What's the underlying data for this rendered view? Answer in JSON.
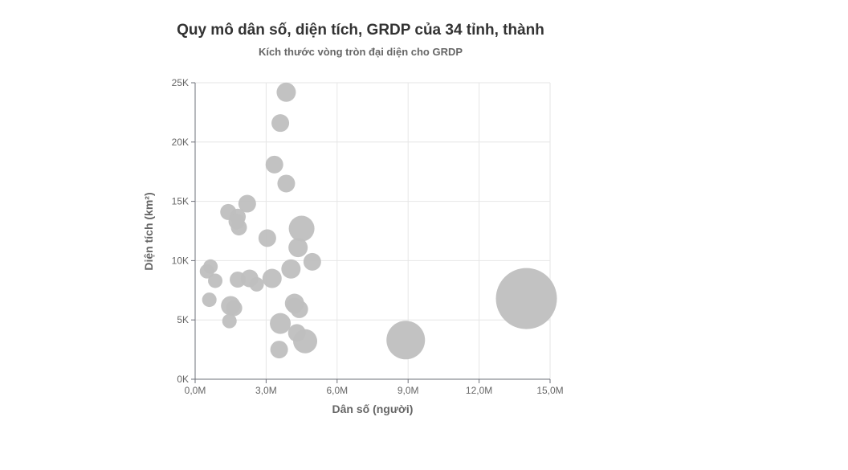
{
  "chart_data": {
    "type": "scatter",
    "title": "Quy mô dân số, diện tích, GRDP của 34 tỉnh, thành",
    "subtitle": "Kích thước vòng tròn đại diện cho GRDP",
    "xlabel": "Dân số (người)",
    "ylabel": "Diện tích (km²)",
    "xlim": [
      0,
      15000000
    ],
    "ylim": [
      0,
      25000
    ],
    "x_ticks": [
      0,
      3000000,
      6000000,
      9000000,
      12000000,
      15000000
    ],
    "x_tick_labels": [
      "0,0M",
      "3,0M",
      "6,0M",
      "9,0M",
      "12,0M",
      "15,0M"
    ],
    "y_ticks": [
      0,
      5000,
      10000,
      15000,
      20000,
      25000
    ],
    "y_tick_labels": [
      "0K",
      "5K",
      "10K",
      "15K",
      "20K",
      "25K"
    ],
    "grid": true,
    "bubble_color": "#bfbfbf",
    "series": [
      {
        "points": [
          {
            "x": 3850000,
            "y": 24200,
            "size": 12
          },
          {
            "x": 3600000,
            "y": 21600,
            "size": 11
          },
          {
            "x": 3350000,
            "y": 18100,
            "size": 11
          },
          {
            "x": 3850000,
            "y": 16500,
            "size": 11
          },
          {
            "x": 2200000,
            "y": 14800,
            "size": 11
          },
          {
            "x": 1400000,
            "y": 14100,
            "size": 10
          },
          {
            "x": 1800000,
            "y": 13700,
            "size": 10
          },
          {
            "x": 1750000,
            "y": 13300,
            "size": 10
          },
          {
            "x": 1850000,
            "y": 12800,
            "size": 10
          },
          {
            "x": 4500000,
            "y": 12700,
            "size": 16
          },
          {
            "x": 3050000,
            "y": 11900,
            "size": 11
          },
          {
            "x": 4350000,
            "y": 11100,
            "size": 12
          },
          {
            "x": 4950000,
            "y": 9900,
            "size": 11
          },
          {
            "x": 650000,
            "y": 9500,
            "size": 9
          },
          {
            "x": 500000,
            "y": 9100,
            "size": 9
          },
          {
            "x": 4050000,
            "y": 9300,
            "size": 12
          },
          {
            "x": 850000,
            "y": 8300,
            "size": 9
          },
          {
            "x": 1800000,
            "y": 8400,
            "size": 10
          },
          {
            "x": 2300000,
            "y": 8500,
            "size": 11
          },
          {
            "x": 3250000,
            "y": 8500,
            "size": 12
          },
          {
            "x": 2600000,
            "y": 8000,
            "size": 9
          },
          {
            "x": 600000,
            "y": 6700,
            "size": 9
          },
          {
            "x": 1500000,
            "y": 6200,
            "size": 12
          },
          {
            "x": 1650000,
            "y": 6000,
            "size": 10
          },
          {
            "x": 4200000,
            "y": 6400,
            "size": 12
          },
          {
            "x": 4400000,
            "y": 5900,
            "size": 11
          },
          {
            "x": 1450000,
            "y": 4900,
            "size": 9
          },
          {
            "x": 3600000,
            "y": 4700,
            "size": 13
          },
          {
            "x": 4300000,
            "y": 3900,
            "size": 11
          },
          {
            "x": 4650000,
            "y": 3200,
            "size": 15
          },
          {
            "x": 3550000,
            "y": 2500,
            "size": 11
          },
          {
            "x": 8900000,
            "y": 3300,
            "size": 24
          },
          {
            "x": 14000000,
            "y": 6800,
            "size": 38
          },
          {
            "x": 4200000,
            "y": 6200,
            "size": 10
          }
        ]
      }
    ]
  }
}
